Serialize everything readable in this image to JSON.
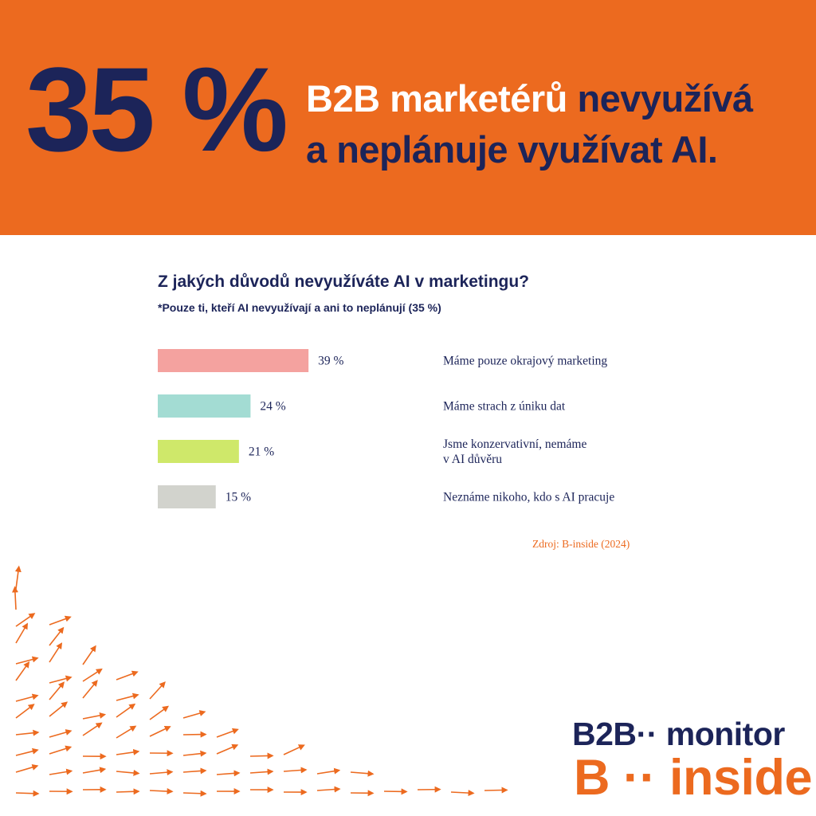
{
  "banner": {
    "stat": "35 %",
    "headline_white": "B2B marketérů",
    "headline_dark_1": "nevyužívá",
    "headline_dark_2": "a neplánuje využívat AI.",
    "color": "#ec6a1f"
  },
  "chart_data": {
    "type": "bar",
    "title": "Z jakých důvodů nevyužíváte AI v marketingu?",
    "subtitle": "*Pouze ti, kteří AI nevyužívají a ani to neplánují (35 %)",
    "unit": "%",
    "xlim": [
      0,
      100
    ],
    "categories": [
      "Máme pouze okrajový marketing",
      "Máme strach z úniku dat",
      "Jsme konzervativní, nemáme v AI důvěru",
      "Neznáme nikoho, kdo s AI pracuje"
    ],
    "category_lines": [
      [
        "Máme pouze okrajový marketing"
      ],
      [
        "Máme strach z úniku dat"
      ],
      [
        "Jsme konzervativní, nemáme",
        "v AI důvěru"
      ],
      [
        "Neznáme nikoho, kdo s AI pracuje"
      ]
    ],
    "values": [
      39,
      24,
      21,
      15
    ],
    "value_labels": [
      "39 %",
      "24 %",
      "21 %",
      "15 %"
    ],
    "colors": [
      "#f4a29f",
      "#a3dcd3",
      "#cfe86a",
      "#d2d3cd"
    ],
    "grid": false,
    "legend": "none"
  },
  "source": "Zdroj: B-inside (2024)",
  "logos": {
    "b2b_main": "B2B",
    "b2b_dots": "··",
    "b2b_word": "monitor",
    "binside_main": "B",
    "binside_dots": "··",
    "binside_word": "inside"
  },
  "decor": {
    "icon": "arrow-pattern",
    "color": "#ec6a1f"
  }
}
